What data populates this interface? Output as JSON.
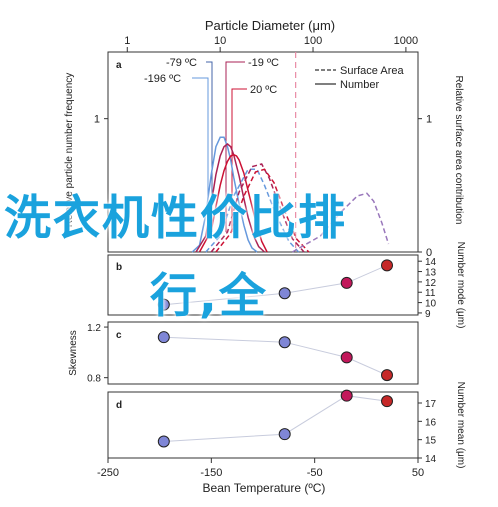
{
  "overlay": {
    "line1": "洗衣机性价比排",
    "line2": "行,全",
    "color": "#1aa2dd"
  },
  "chart_data": [
    {
      "panel": "a",
      "type": "line",
      "top_axis_label": "Particle Diameter (μm)",
      "xscale": "log",
      "xlim": [
        0.62,
        1350
      ],
      "top_ticks": [
        {
          "v": 1,
          "label": "1"
        },
        {
          "v": 10,
          "label": "10"
        },
        {
          "v": 100,
          "label": "100"
        },
        {
          "v": 1000,
          "label": "1000"
        }
      ],
      "ylabel_left": "Relative particle number frequency",
      "ylabel_right": "Relative surface area contribution",
      "ylim": [
        0,
        1.5
      ],
      "left_ticks": [
        {
          "v": 1,
          "label": "1"
        }
      ],
      "right_ticks": [
        {
          "v": 0,
          "label": "0"
        },
        {
          "v": 1,
          "label": "1"
        }
      ],
      "legend_entries": [
        {
          "label": "Surface Area",
          "style": "dashed"
        },
        {
          "label": "Number",
          "style": "solid"
        }
      ],
      "legend_placement": "top-right",
      "temperature_labels": [
        {
          "label": "-79 ºC",
          "color": "#4466aa"
        },
        {
          "label": "-196 ºC",
          "color": "#6699dd"
        },
        {
          "label": "-19 ºC",
          "color": "#aa2255"
        },
        {
          "label": "20 ºC",
          "color": "#cc1133"
        }
      ],
      "reference_line_x": 65,
      "series": [
        {
          "kind": "Number",
          "color": "#6699dd",
          "style": "solid",
          "x": [
            5,
            6,
            7,
            8,
            9,
            10,
            11,
            12,
            13,
            14,
            16,
            18,
            20,
            22,
            25
          ],
          "y": [
            0,
            0.05,
            0.28,
            0.58,
            0.79,
            0.86,
            0.86,
            0.79,
            0.69,
            0.56,
            0.36,
            0.2,
            0.09,
            0.03,
            0
          ]
        },
        {
          "kind": "Number",
          "color": "#aa2255",
          "style": "solid",
          "x": [
            5.5,
            7,
            8,
            9,
            10,
            11,
            12,
            13,
            14,
            16,
            18,
            20,
            23,
            26,
            30
          ],
          "y": [
            0,
            0.12,
            0.36,
            0.58,
            0.72,
            0.79,
            0.81,
            0.79,
            0.73,
            0.57,
            0.4,
            0.26,
            0.12,
            0.04,
            0
          ]
        },
        {
          "kind": "Number",
          "color": "#cc1133",
          "style": "solid",
          "x": [
            6,
            8,
            9,
            10,
            11,
            12,
            13,
            14,
            15,
            16,
            18,
            20,
            24,
            28,
            32
          ],
          "y": [
            0,
            0.16,
            0.34,
            0.5,
            0.61,
            0.68,
            0.72,
            0.73,
            0.72,
            0.69,
            0.59,
            0.46,
            0.24,
            0.08,
            0
          ]
        },
        {
          "kind": "Surface Area",
          "color": "#6699dd",
          "style": "dashed",
          "x": [
            7,
            10,
            14,
            20,
            25,
            30,
            40,
            55,
            70
          ],
          "y": [
            0,
            0.12,
            0.42,
            0.62,
            0.62,
            0.5,
            0.28,
            0.08,
            0
          ]
        },
        {
          "kind": "Surface Area",
          "color": "#aa2255",
          "style": "dashed",
          "x": [
            8,
            12,
            16,
            22,
            28,
            34,
            45,
            60,
            80
          ],
          "y": [
            0,
            0.15,
            0.45,
            0.64,
            0.66,
            0.55,
            0.32,
            0.1,
            0
          ]
        },
        {
          "kind": "Surface Area",
          "color": "#cc1133",
          "style": "dashed",
          "x": [
            9,
            13,
            18,
            24,
            30,
            38,
            50,
            66,
            90
          ],
          "y": [
            0,
            0.14,
            0.42,
            0.6,
            0.62,
            0.52,
            0.3,
            0.1,
            0
          ]
        },
        {
          "kind": "Surface Area",
          "color": "#9977bb",
          "style": "dashed",
          "x": [
            60,
            120,
            200,
            300,
            380,
            450,
            550,
            650
          ],
          "y": [
            0,
            0.12,
            0.3,
            0.42,
            0.44,
            0.38,
            0.22,
            0.06
          ]
        }
      ]
    },
    {
      "panel": "b",
      "type": "scatter",
      "xlabel": "Bean Temperature (ºC)",
      "ylabel": "Number mode (μm)",
      "ylim": [
        8.8,
        14.6
      ],
      "right_ticks": [
        9,
        10,
        11,
        12,
        13,
        14
      ],
      "x": [
        -196,
        -79,
        -19,
        20
      ],
      "values": [
        9.8,
        10.9,
        11.9,
        13.6
      ]
    },
    {
      "panel": "c",
      "type": "scatter",
      "xlabel": "Bean Temperature (ºC)",
      "ylabel": "Skewness",
      "ylim": [
        0.75,
        1.24
      ],
      "left_ticks": [
        {
          "v": 0.8,
          "label": "0.8"
        },
        {
          "v": 1.2,
          "label": "1.2"
        }
      ],
      "x": [
        -196,
        -79,
        -19,
        20
      ],
      "values": [
        1.12,
        1.08,
        0.96,
        0.82
      ]
    },
    {
      "panel": "d",
      "type": "scatter",
      "xlabel": "Bean Temperature (ºC)",
      "ylabel": "Number mean (μm)",
      "ylim": [
        14,
        17.6
      ],
      "right_ticks": [
        14,
        15,
        16,
        17
      ],
      "x": [
        -196,
        -79,
        -19,
        20
      ],
      "values": [
        14.9,
        15.3,
        17.4,
        17.1
      ],
      "xlim": [
        -250,
        50
      ],
      "xticks": [
        -250,
        -150,
        -50,
        50
      ]
    }
  ],
  "point_colors": [
    "#7f86d6",
    "#7f86d6",
    "#c2185b",
    "#c62828"
  ]
}
